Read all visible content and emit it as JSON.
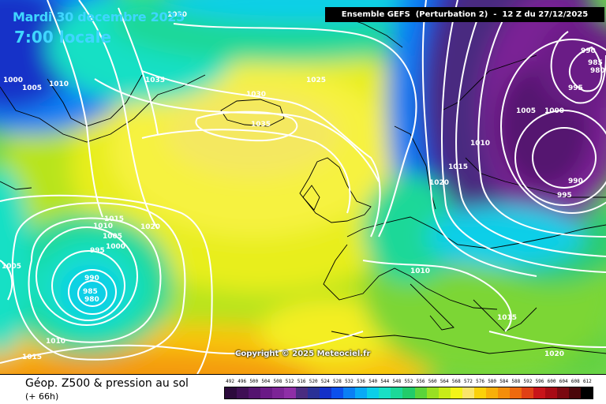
{
  "header": {
    "date": "Mardi 30 decembre 2025",
    "time": "7:00 locale",
    "title": "Ensemble GEFS  (Perturbation 2)  -  12 Z du 27/12/2025"
  },
  "copyright": "Copyright © 2025 Meteociel.fr",
  "footer": {
    "title": "Géop. Z500 & pression au sol",
    "subtitle": "(+ 66h)"
  },
  "legend": {
    "values": [
      "492",
      "496",
      "500",
      "504",
      "508",
      "512",
      "516",
      "520",
      "524",
      "528",
      "532",
      "536",
      "540",
      "544",
      "548",
      "552",
      "556",
      "560",
      "564",
      "568",
      "572",
      "576",
      "580",
      "584",
      "588",
      "592",
      "596",
      "600",
      "604",
      "608",
      "612"
    ],
    "colors": [
      "#2c0a3c",
      "#3f0f55",
      "#54136f",
      "#6a1a86",
      "#7c2496",
      "#8e2ea6",
      "#4a2c80",
      "#2a3196",
      "#1330c8",
      "#0b50ec",
      "#0a7ff4",
      "#09aaf6",
      "#0ccfe8",
      "#19e0c5",
      "#1cd898",
      "#22cc6a",
      "#5bd43a",
      "#99e022",
      "#c8ec18",
      "#f4f418",
      "#fae56a",
      "#fbd10a",
      "#f8b00a",
      "#f48e0a",
      "#ee6a0e",
      "#e04016",
      "#c8141a",
      "#a80a14",
      "#7a0810",
      "#4a060a",
      "#000000"
    ]
  },
  "isobars": [
    {
      "label": "1030",
      "pos": "top-left"
    },
    {
      "label": "1000",
      "pos": "far-left"
    },
    {
      "label": "1005",
      "pos": "far-left"
    },
    {
      "label": "1010",
      "pos": "far-left"
    },
    {
      "label": "1035",
      "pos": "Greenland"
    },
    {
      "label": "1025",
      "pos": "north-atlantic"
    },
    {
      "label": "1030",
      "pos": "Iceland"
    },
    {
      "label": "1035",
      "pos": "Iceland"
    },
    {
      "label": "990",
      "pos": "Scandinavia-high"
    },
    {
      "label": "985",
      "pos": "Scandinavia"
    },
    {
      "label": "980",
      "pos": "Scandinavia"
    },
    {
      "label": "995",
      "pos": "Scandinavia"
    },
    {
      "label": "1005",
      "pos": "North-Sea"
    },
    {
      "label": "1000",
      "pos": "Baltic"
    },
    {
      "label": "1010",
      "pos": "Norway"
    },
    {
      "label": "1015",
      "pos": "Norway"
    },
    {
      "label": "1020",
      "pos": "UK-east"
    },
    {
      "label": "990",
      "pos": "Russia"
    },
    {
      "label": "995",
      "pos": "Russia"
    },
    {
      "label": "1015",
      "pos": "atlantic-low"
    },
    {
      "label": "1010",
      "pos": "atlantic-low"
    },
    {
      "label": "1020",
      "pos": "atlantic-low"
    },
    {
      "label": "1005",
      "pos": "atlantic-low"
    },
    {
      "label": "1000",
      "pos": "atlantic-low"
    },
    {
      "label": "995",
      "pos": "atlantic-low"
    },
    {
      "label": "1005",
      "pos": "west-edge"
    },
    {
      "label": "990",
      "pos": "low-center"
    },
    {
      "label": "985",
      "pos": "low-center"
    },
    {
      "label": "980",
      "pos": "low-center"
    },
    {
      "label": "1010",
      "pos": "Mediterranean"
    },
    {
      "label": "1015",
      "pos": "Aegean"
    },
    {
      "label": "1010",
      "pos": "south-atlantic"
    },
    {
      "label": "1015",
      "pos": "south-west"
    },
    {
      "label": "1020",
      "pos": "Africa"
    }
  ]
}
